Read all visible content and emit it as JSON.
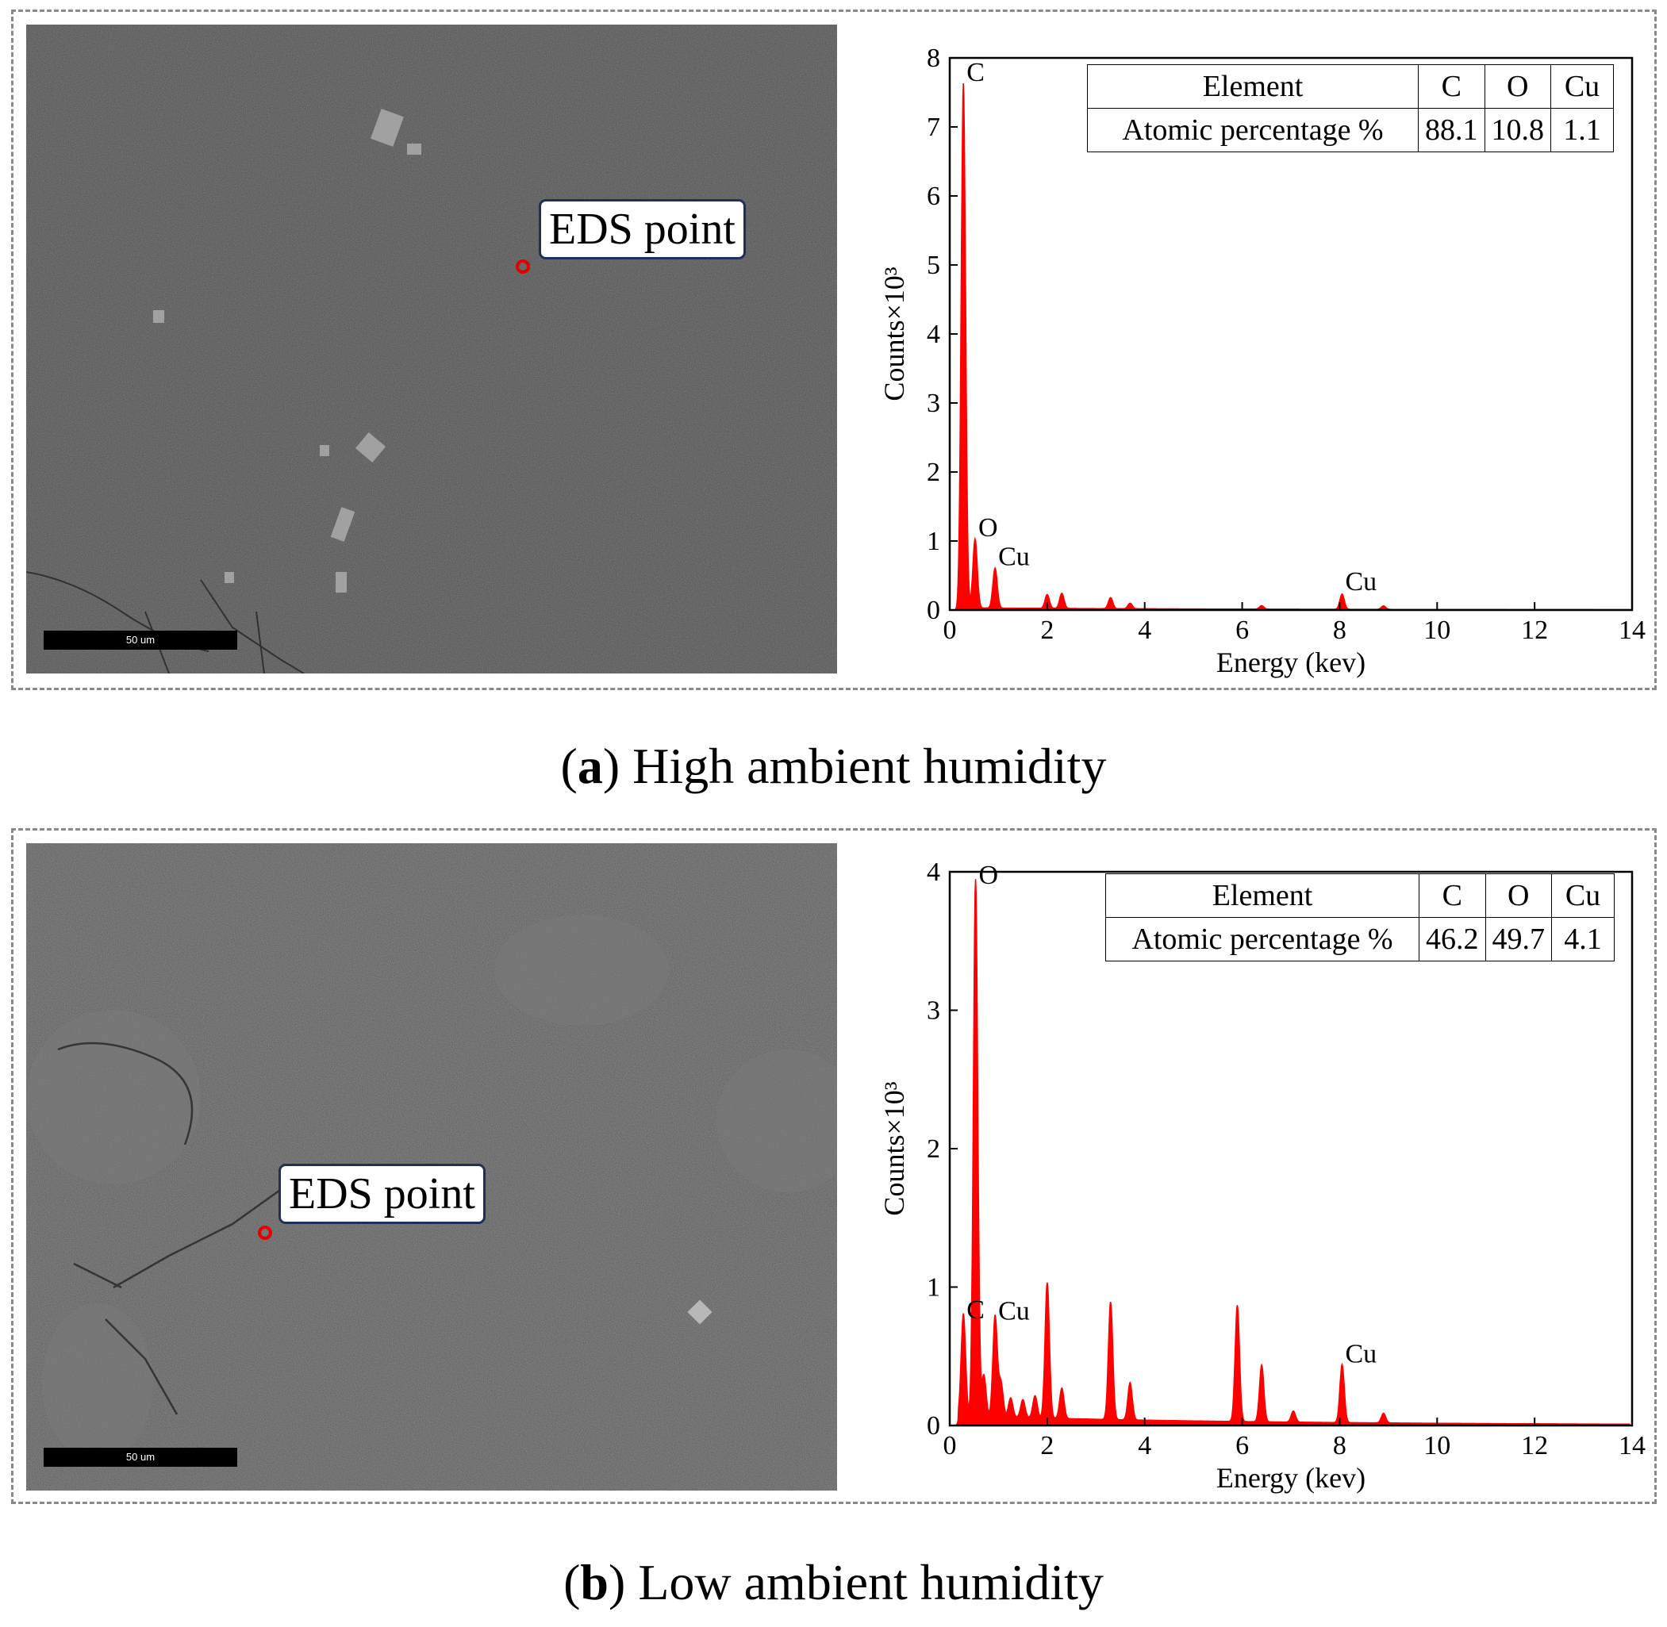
{
  "panels": [
    {
      "sem": {
        "scale_label": "50 um",
        "eds_label": "EDS point"
      },
      "caption_letter": "a",
      "caption_text": " High ambient humidity",
      "table": {
        "header": [
          "Element",
          "C",
          "O",
          "Cu"
        ],
        "row": [
          "Atomic percentage %",
          "88.1",
          "10.8",
          "1.1"
        ]
      }
    },
    {
      "sem": {
        "scale_label": "50 um",
        "eds_label": "EDS point"
      },
      "caption_letter": "b",
      "caption_text": " Low ambient humidity",
      "table": {
        "header": [
          "Element",
          "C",
          "O",
          "Cu"
        ],
        "row": [
          "Atomic percentage %",
          "46.2",
          "49.7",
          "4.1"
        ]
      }
    }
  ],
  "chart_data": [
    {
      "type": "area",
      "xlabel": "Energy (kev)",
      "ylabel": "Counts×10³",
      "xlim": [
        0,
        14
      ],
      "ylim": [
        0,
        8
      ],
      "xticks": [
        0,
        2,
        4,
        6,
        8,
        10,
        12,
        14
      ],
      "yticks": [
        0,
        1,
        2,
        3,
        4,
        5,
        6,
        7,
        8
      ],
      "color": "#ff0000",
      "peaks": [
        {
          "x": 0.28,
          "y": 7.6,
          "label": "C"
        },
        {
          "x": 0.52,
          "y": 1.0,
          "label": "O"
        },
        {
          "x": 0.93,
          "y": 0.58,
          "label": "Cu"
        },
        {
          "x": 2.0,
          "y": 0.2
        },
        {
          "x": 2.3,
          "y": 0.22
        },
        {
          "x": 3.3,
          "y": 0.16
        },
        {
          "x": 3.7,
          "y": 0.08
        },
        {
          "x": 6.4,
          "y": 0.05
        },
        {
          "x": 8.05,
          "y": 0.22,
          "label": "Cu"
        },
        {
          "x": 8.9,
          "y": 0.05
        }
      ],
      "baseline": 0.03
    },
    {
      "type": "area",
      "xlabel": "Energy (kev)",
      "ylabel": "Counts×10³",
      "xlim": [
        0,
        14
      ],
      "ylim": [
        0,
        4
      ],
      "xticks": [
        0,
        2,
        4,
        6,
        8,
        10,
        12,
        14
      ],
      "yticks": [
        0,
        1,
        2,
        3,
        4
      ],
      "color": "#ff0000",
      "peaks": [
        {
          "x": 0.28,
          "y": 0.74,
          "label": "C"
        },
        {
          "x": 0.53,
          "y": 3.88,
          "label": "O"
        },
        {
          "x": 0.7,
          "y": 0.3
        },
        {
          "x": 0.93,
          "y": 0.73,
          "label": "Cu"
        },
        {
          "x": 1.05,
          "y": 0.25
        },
        {
          "x": 1.25,
          "y": 0.14
        },
        {
          "x": 1.5,
          "y": 0.13
        },
        {
          "x": 1.75,
          "y": 0.16
        },
        {
          "x": 2.0,
          "y": 0.98
        },
        {
          "x": 2.3,
          "y": 0.22
        },
        {
          "x": 3.3,
          "y": 0.85
        },
        {
          "x": 3.7,
          "y": 0.27
        },
        {
          "x": 5.9,
          "y": 0.84
        },
        {
          "x": 6.4,
          "y": 0.41
        },
        {
          "x": 7.05,
          "y": 0.08
        },
        {
          "x": 8.05,
          "y": 0.42,
          "label": "Cu"
        },
        {
          "x": 8.9,
          "y": 0.07
        }
      ],
      "baseline": 0.07
    }
  ]
}
